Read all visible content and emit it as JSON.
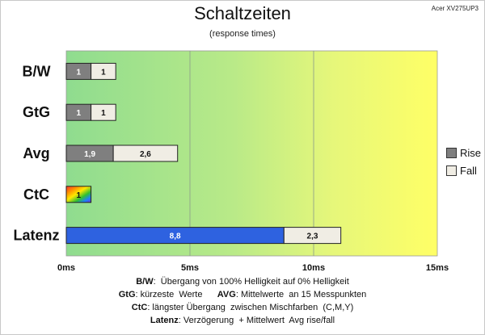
{
  "header": {
    "title": "Schaltzeiten",
    "subtitle": "(response times)",
    "model": "Acer XV275UP3"
  },
  "legend": {
    "items": [
      {
        "label": "Rise",
        "color": "#7f7f7f"
      },
      {
        "label": "Fall",
        "color": "#f0ede4"
      }
    ]
  },
  "notes": [
    {
      "parts": [
        {
          "b": "B/W",
          "t": ":  Übergang von 100% Helligkeit auf 0% Helligkeit"
        }
      ]
    },
    {
      "parts": [
        {
          "b": "GtG",
          "t": ": kürzeste  Werte      "
        },
        {
          "b": "AVG",
          "t": ": Mittelwerte  an 15 Messpunkten"
        }
      ]
    },
    {
      "parts": [
        {
          "b": "CtC",
          "t": ": längster Übergang  zwischen Mischfarben  (C,M,Y)"
        }
      ]
    },
    {
      "parts": [
        {
          "b": "Latenz",
          "t": ": Verzögerung  + Mittelwert  Avg rise/fall"
        }
      ]
    }
  ],
  "chart_data": {
    "type": "bar",
    "orientation": "horizontal",
    "stacked": true,
    "categories": [
      "B/W",
      "GtG",
      "Avg",
      "CtC",
      "Latenz"
    ],
    "series": [
      {
        "name": "Rise",
        "values": [
          1,
          1,
          1.9,
          1,
          8.8
        ],
        "labels": [
          "1",
          "1",
          "1,9",
          "1",
          "8,8"
        ]
      },
      {
        "name": "Fall",
        "values": [
          1,
          1,
          2.6,
          null,
          2.3
        ],
        "labels": [
          "1",
          "1",
          "2,6",
          "",
          "2,3"
        ]
      }
    ],
    "xlim": [
      0,
      15
    ],
    "ticks": [
      0,
      5,
      10,
      15
    ],
    "tick_labels": [
      "0ms",
      "5ms",
      "10ms",
      "15ms"
    ],
    "background": {
      "type": "gradient",
      "colors": [
        "#8fdc8f",
        "#c8ee80",
        "#ffff66"
      ]
    },
    "grid": true,
    "legend_position": "right",
    "colors": {
      "rise": "#7f7f7f",
      "fall": "#f0ede4",
      "latenz_rise": "#2e62e0"
    }
  }
}
